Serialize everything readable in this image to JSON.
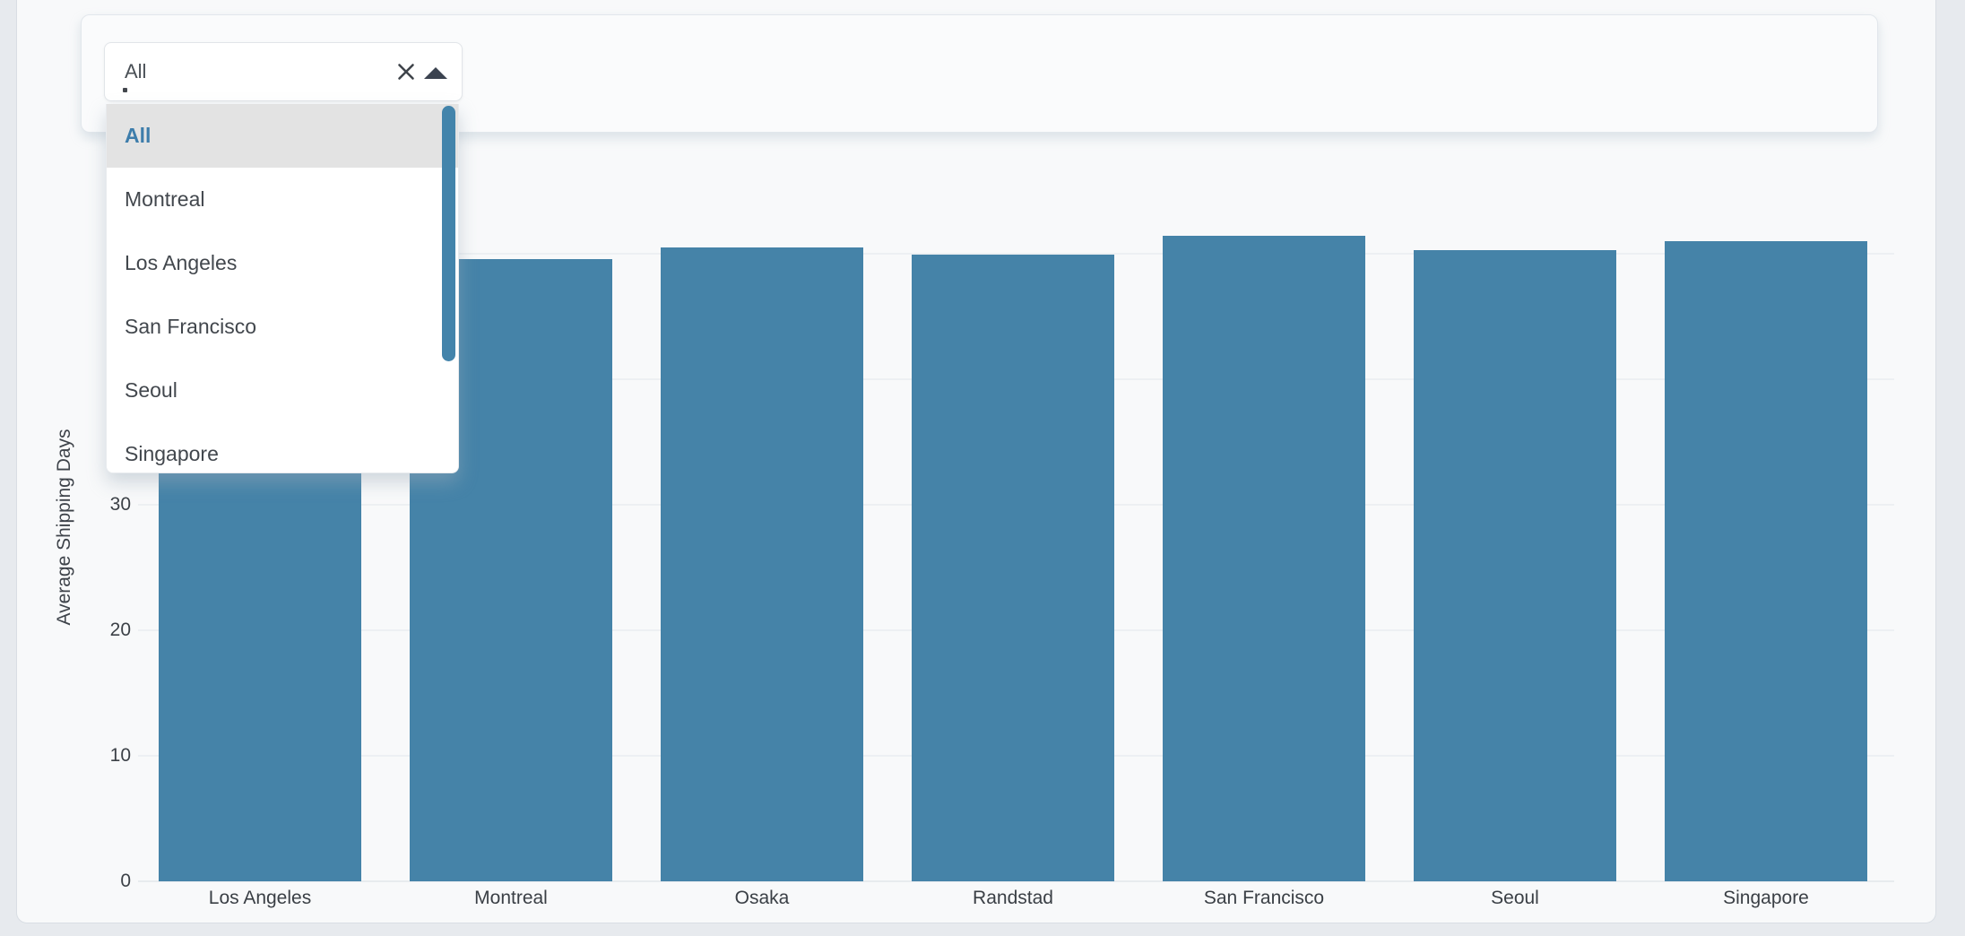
{
  "filter": {
    "select_value": "All",
    "clear_glyph": "×"
  },
  "dropdown": {
    "selected": "All",
    "options": [
      "All",
      "Montreal",
      "Los Angeles",
      "San Francisco",
      "Seoul",
      "Singapore"
    ]
  },
  "chart_data": {
    "type": "bar",
    "title": "",
    "categories": [
      "Los Angeles",
      "Montreal",
      "Osaka",
      "Randstad",
      "San Francisco",
      "Seoul",
      "Singapore"
    ],
    "values": [
      50.0,
      49.6,
      50.5,
      49.9,
      51.4,
      50.3,
      51.0
    ],
    "xlabel": "",
    "ylabel": "Average Shipping Days",
    "ytick_labels_visible": [
      "0",
      "10",
      "20",
      "30"
    ],
    "gridline_values": [
      10,
      20,
      30,
      40,
      50
    ],
    "ylim": [
      0,
      57.5
    ],
    "grid": true,
    "legend_position": "none",
    "bar_color": "#4583a8"
  },
  "colors": {
    "accent": "#4583a8",
    "selected_option_text": "#3d7dab",
    "selected_option_bg": "#e3e3e3",
    "page_bg": "#e7eaee",
    "card_bg": "#f8f9fa"
  }
}
